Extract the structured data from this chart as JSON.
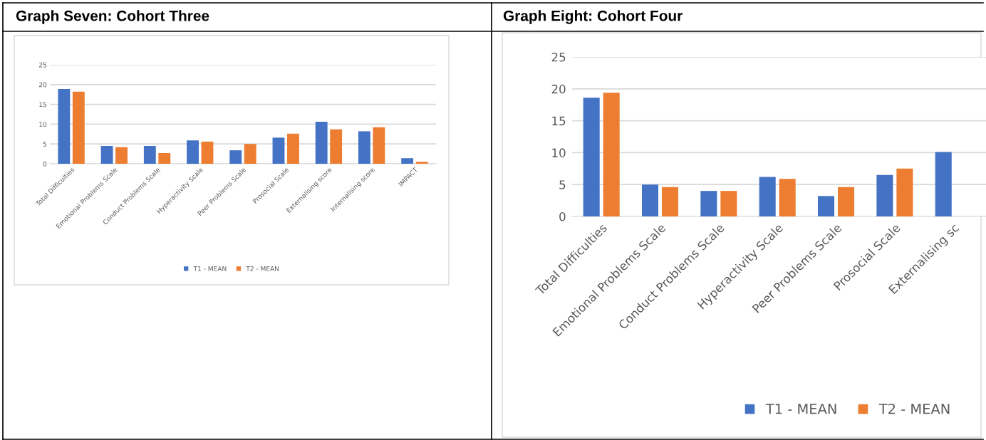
{
  "chart_data": [
    {
      "type": "bar",
      "title": "Graph Seven: Cohort Three",
      "categories": [
        "Total Difficulties",
        "Emotional Problems Scale",
        "Conduct Problems Scale",
        "Hyperactivity Scale",
        "Peer Problems Scale",
        "Prosocial Scale",
        "Externalising score",
        "Internalising score",
        "IMPACT"
      ],
      "series": [
        {
          "name": "T1 - MEAN",
          "color": "#4472c4",
          "values": [
            18.9,
            4.5,
            4.5,
            5.9,
            3.4,
            6.6,
            10.6,
            8.2,
            1.4
          ]
        },
        {
          "name": "T2 - MEAN",
          "color": "#ed7d31",
          "values": [
            18.2,
            4.2,
            2.7,
            5.6,
            5.0,
            7.6,
            8.7,
            9.2,
            0.5
          ]
        }
      ],
      "ylim": [
        0,
        25
      ],
      "yticks": [
        0,
        5,
        10,
        15,
        20,
        25
      ],
      "grid": "y",
      "legend": "bottom"
    },
    {
      "type": "bar",
      "title": "Graph Eight: Cohort Four",
      "categories": [
        "Total Difficulties",
        "Emotional Problems Scale",
        "Conduct Problems Scale",
        "Hyperactivity Scale",
        "Peer Problems Scale",
        "Prosocial Scale",
        "Externalising sc"
      ],
      "series": [
        {
          "name": "T1 - MEAN",
          "color": "#4472c4",
          "values": [
            18.6,
            5.0,
            4.0,
            6.2,
            3.2,
            6.5,
            10.1
          ]
        },
        {
          "name": "T2 - MEAN",
          "color": "#ed7d31",
          "values": [
            19.4,
            4.6,
            4.0,
            5.9,
            4.6,
            7.5,
            null
          ]
        }
      ],
      "ylim": [
        0,
        25
      ],
      "yticks": [
        0,
        5,
        10,
        15,
        20,
        25
      ],
      "grid": "y",
      "legend": "bottom"
    }
  ]
}
